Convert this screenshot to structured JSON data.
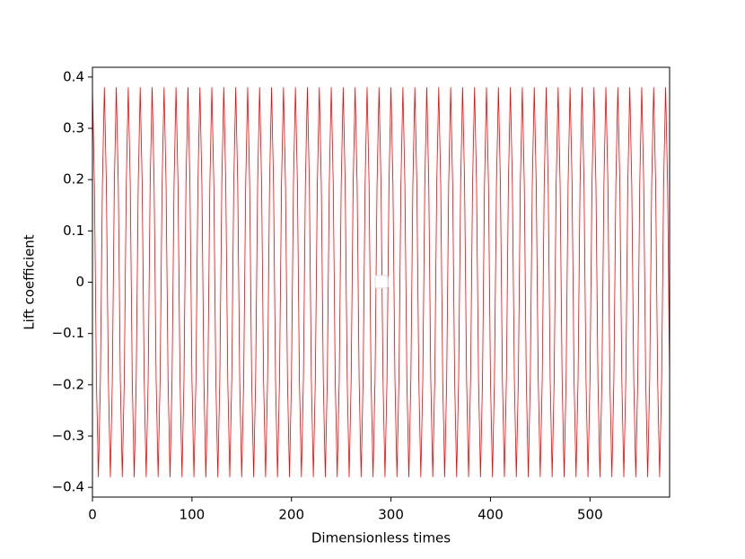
{
  "chart_data": {
    "type": "line",
    "xlabel": "Dimensionless times",
    "ylabel": "Lift coefficient",
    "x": [
      0,
      2,
      4,
      6,
      8,
      10,
      12,
      14,
      16,
      18,
      20,
      22,
      24,
      26,
      28,
      30,
      32,
      34,
      36,
      38,
      40,
      42,
      44,
      46,
      48,
      50,
      52,
      54,
      56,
      58,
      60,
      62,
      64,
      66,
      68,
      70,
      72,
      74,
      76,
      78,
      80,
      82,
      84,
      86,
      88,
      90,
      92,
      94,
      96,
      98,
      100,
      102,
      104,
      106,
      108,
      110,
      112,
      114,
      116,
      118,
      120,
      122,
      124,
      126,
      128,
      130,
      132,
      134,
      136,
      138,
      140,
      142,
      144,
      146,
      148,
      150,
      152,
      154,
      156,
      158,
      160,
      162,
      164,
      166,
      168,
      170,
      172,
      174,
      176,
      178,
      180,
      182,
      184,
      186,
      188,
      190,
      192,
      194,
      196,
      198,
      200,
      202,
      204,
      206,
      208,
      210,
      212,
      214,
      216,
      218,
      220,
      222,
      224,
      226,
      228,
      230,
      232,
      234,
      236,
      238,
      240,
      242,
      244,
      246,
      248,
      250,
      252,
      254,
      256,
      258,
      260,
      262,
      264,
      266,
      268,
      270,
      272,
      274,
      276,
      278,
      280,
      282,
      284,
      286,
      288,
      290,
      292,
      294,
      296,
      298,
      300,
      302,
      304,
      306,
      308,
      310,
      312,
      314,
      316,
      318,
      320,
      322,
      324,
      326,
      328,
      330,
      332,
      334,
      336,
      338,
      340,
      342,
      344,
      346,
      348,
      350,
      352,
      354,
      356,
      358,
      360,
      362,
      364,
      366,
      368,
      370,
      372,
      374,
      376,
      378,
      380,
      382,
      384,
      386,
      388,
      390,
      392,
      394,
      396,
      398,
      400,
      402,
      404,
      406,
      408,
      410,
      412,
      414,
      416,
      418,
      420,
      422,
      424,
      426,
      428,
      430,
      432,
      434,
      436,
      438,
      440,
      442,
      444,
      446,
      448,
      450,
      452,
      454,
      456,
      458,
      460,
      462,
      464,
      466,
      468,
      470,
      472,
      474,
      476,
      478,
      480,
      482,
      484,
      486,
      488,
      490,
      492,
      494,
      496,
      498,
      500,
      502,
      504,
      506,
      508,
      510,
      512,
      514,
      516,
      518,
      520,
      522,
      524,
      526,
      528,
      530,
      532,
      534,
      536,
      538,
      540,
      542,
      544,
      546,
      548,
      550,
      552,
      554,
      556,
      558,
      560,
      562,
      564,
      566,
      568,
      570,
      572,
      574,
      576,
      578,
      580
    ],
    "series": [
      {
        "color": "#ff0000",
        "values": [
          0.38,
          0.19,
          -0.19,
          -0.38,
          -0.19,
          0.19,
          0.38,
          0.19,
          -0.19,
          -0.38,
          -0.19,
          0.19,
          0.38,
          0.19,
          -0.19,
          -0.38,
          -0.19,
          0.19,
          0.38,
          0.19,
          -0.19,
          -0.38,
          -0.19,
          0.19,
          0.38,
          0.19,
          -0.19,
          -0.38,
          -0.19,
          0.19,
          0.38,
          0.19,
          -0.19,
          -0.38,
          -0.19,
          0.19,
          0.38,
          0.19,
          -0.19,
          -0.38,
          -0.19,
          0.19,
          0.38,
          0.19,
          -0.19,
          -0.38,
          -0.19,
          0.19,
          0.38,
          0.19,
          -0.19,
          -0.38,
          -0.19,
          0.19,
          0.38,
          0.19,
          -0.19,
          -0.38,
          -0.19,
          0.19,
          0.38,
          0.19,
          -0.19,
          -0.38,
          -0.19,
          0.19,
          0.38,
          0.19,
          -0.19,
          -0.38,
          -0.19,
          0.19,
          0.38,
          0.19,
          -0.19,
          -0.38,
          -0.19,
          0.19,
          0.38,
          0.19,
          -0.19,
          -0.38,
          -0.19,
          0.19,
          0.38,
          0.19,
          -0.19,
          -0.38,
          -0.19,
          0.19,
          0.38,
          0.19,
          -0.19,
          -0.38,
          -0.19,
          0.19,
          0.38,
          0.19,
          -0.19,
          -0.38,
          -0.19,
          0.19,
          0.38,
          0.19,
          -0.19,
          -0.38,
          -0.19,
          0.19,
          0.38,
          0.19,
          -0.19,
          -0.38,
          -0.19,
          0.19,
          0.38,
          0.19,
          -0.19,
          -0.38,
          -0.19,
          0.19,
          0.38,
          0.19,
          -0.19,
          -0.38,
          -0.19,
          0.19,
          0.38,
          0.19,
          -0.19,
          -0.38,
          -0.19,
          0.19,
          0.38,
          0.19,
          -0.19,
          -0.38,
          -0.19,
          0.19,
          0.38,
          0.19,
          -0.19,
          -0.38,
          -0.19,
          0.19,
          0.38,
          0.19,
          -0.19,
          -0.38,
          -0.19,
          0.19,
          0.38,
          0.19,
          -0.19,
          -0.38,
          -0.19,
          0.19,
          0.38,
          0.19,
          -0.19,
          -0.38,
          -0.19,
          0.19,
          0.38,
          0.19,
          -0.19,
          -0.38,
          -0.19,
          0.19,
          0.38,
          0.19,
          -0.19,
          -0.38,
          -0.19,
          0.19,
          0.38,
          0.19,
          -0.19,
          -0.38,
          -0.19,
          0.19,
          0.38,
          0.19,
          -0.19,
          -0.38,
          -0.19,
          0.19,
          0.38,
          0.19,
          -0.19,
          -0.38,
          -0.19,
          0.19,
          0.38,
          0.19,
          -0.19,
          -0.38,
          -0.19,
          0.19,
          0.38,
          0.19,
          -0.19,
          -0.38,
          -0.19,
          0.19,
          0.38,
          0.19,
          -0.19,
          -0.38,
          -0.19,
          0.19,
          0.38,
          0.19,
          -0.19,
          -0.38,
          -0.19,
          0.19,
          0.38,
          0.19,
          -0.19,
          -0.38,
          -0.19,
          0.19,
          0.38,
          0.19,
          -0.19,
          -0.38,
          -0.19,
          0.19,
          0.38,
          0.19,
          -0.19,
          -0.38,
          -0.19,
          0.19,
          0.38,
          0.19,
          -0.19,
          -0.38,
          -0.19,
          0.19,
          0.38,
          0.19,
          -0.19,
          -0.38,
          -0.19,
          0.19,
          0.38,
          0.19,
          -0.19,
          -0.38,
          -0.19,
          0.19,
          0.38,
          0.19,
          -0.19,
          -0.38,
          -0.19,
          0.19,
          0.38,
          0.19,
          -0.19,
          -0.38,
          -0.19,
          0.19,
          0.38,
          0.19,
          -0.19,
          -0.38,
          -0.19,
          0.19,
          0.38,
          0.19,
          -0.19,
          -0.38,
          -0.19,
          0.19,
          0.38,
          0.19,
          -0.19,
          -0.38,
          -0.19,
          0.19,
          0.38,
          0.19,
          -0.19,
          -0.38,
          -0.19,
          0.19,
          0.38,
          0.19,
          -0.19
        ]
      }
    ],
    "xlim": [
      0,
      580
    ],
    "xticks": [
      0,
      100,
      200,
      300,
      400,
      500
    ],
    "ylim": [
      -0.419,
      0.419
    ],
    "yticks": [
      {
        "value": -0.4,
        "label": "−0.4"
      },
      {
        "value": -0.3,
        "label": "−0.3"
      },
      {
        "value": -0.2,
        "label": "−0.2"
      },
      {
        "value": -0.1,
        "label": "−0.1"
      },
      0.0,
      0.1,
      0.2,
      0.3,
      0.4
    ],
    "grid": false
  }
}
